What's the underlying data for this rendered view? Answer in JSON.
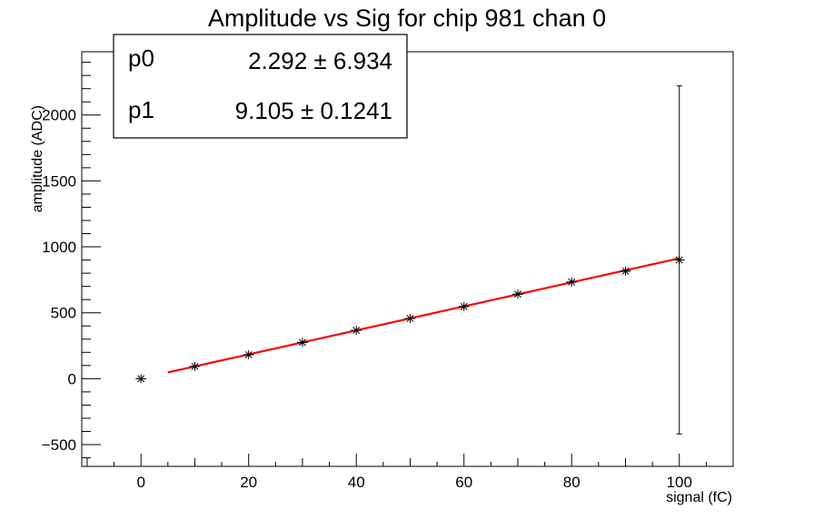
{
  "chart_data": {
    "type": "scatter",
    "title": "Amplitude vs Sig for chip 981 chan 0",
    "xlabel": "signal (fC)",
    "ylabel": "amplitude (ADC)",
    "xlim": [
      -11,
      110
    ],
    "ylim": [
      -665,
      2480
    ],
    "x_ticks": [
      0,
      20,
      40,
      60,
      80,
      100
    ],
    "y_ticks": [
      -500,
      0,
      500,
      1000,
      1500,
      2000
    ],
    "grid": false,
    "series": [
      {
        "x": [
          0,
          10,
          20,
          30,
          40,
          50,
          60,
          70,
          80,
          90,
          100
        ],
        "y": [
          0,
          93,
          182,
          275,
          367,
          457,
          547,
          641,
          733,
          816,
          901
        ],
        "y_error": [
          0,
          0,
          0,
          0,
          0,
          0,
          0,
          0,
          0,
          0,
          1320
        ],
        "x_error": [
          1,
          1,
          1,
          1,
          1,
          1,
          1,
          1,
          1,
          1,
          1
        ],
        "color": "#000000",
        "marker": "star"
      }
    ],
    "fit": {
      "type": "linear",
      "x_range": [
        5,
        100
      ],
      "color": "#ff0000"
    },
    "stats_box": {
      "location": "top-left",
      "rows": [
        {
          "name": "p0",
          "value": "2.292",
          "pm": "±",
          "error": "6.934"
        },
        {
          "name": "p1",
          "value": "9.105",
          "pm": "±",
          "error": "0.1241"
        }
      ]
    }
  }
}
